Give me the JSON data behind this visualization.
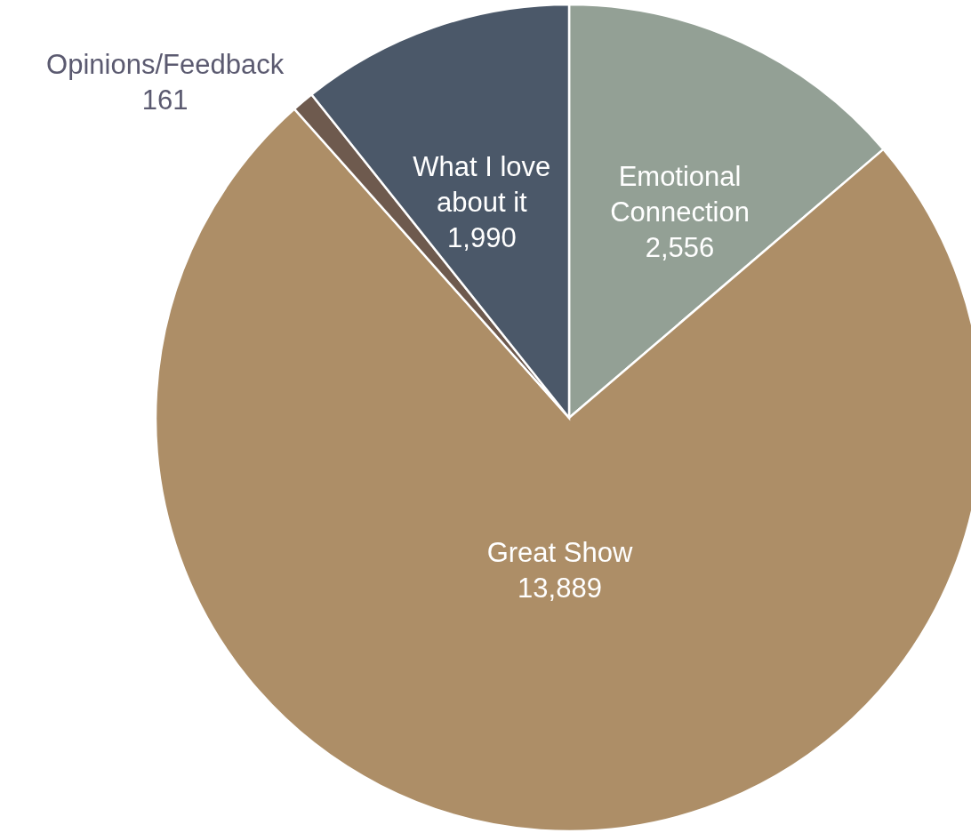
{
  "chart_data": {
    "type": "pie",
    "categories": [
      "Emotional Connection",
      "Great Show",
      "Opinions/Feedback",
      "What I love about it"
    ],
    "values": [
      2556,
      13889,
      161,
      1990
    ],
    "colors": [
      "#93a095",
      "#ad8e67",
      "#6e5a4e",
      "#4b5869"
    ],
    "value_labels": [
      "2,556",
      "13,889",
      "161",
      "1,990"
    ]
  }
}
